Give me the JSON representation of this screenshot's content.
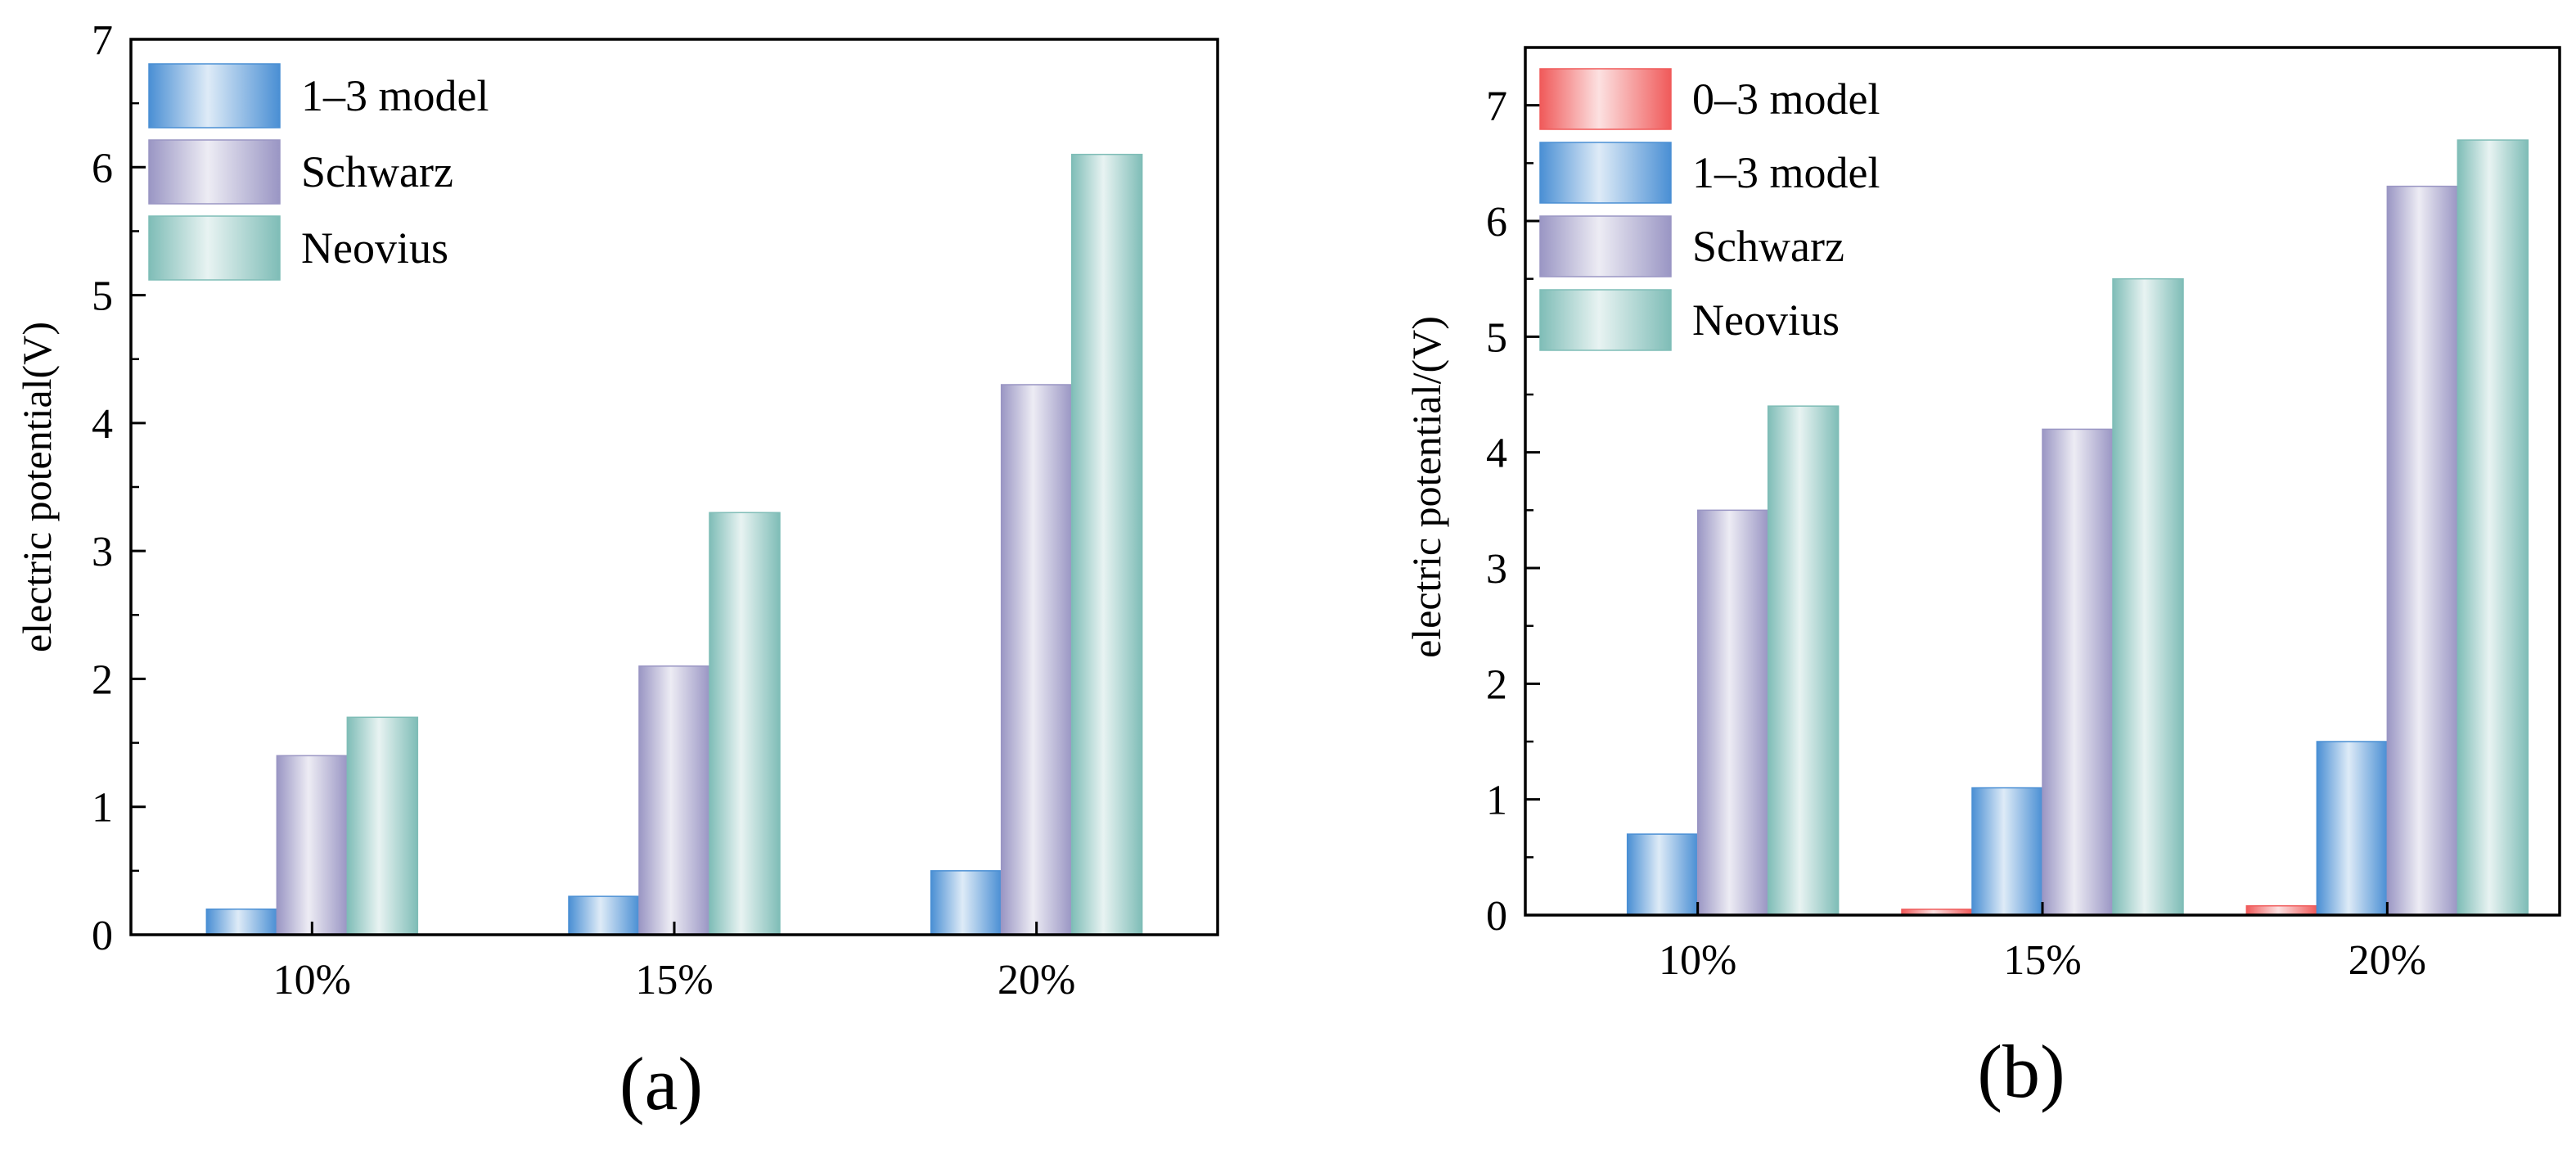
{
  "chart_data": [
    {
      "type": "bar",
      "panel_label": "(a)",
      "categories": [
        "10%",
        "15%",
        "20%"
      ],
      "ylabel": "electric potential(V)",
      "xlabel": "",
      "ylim": [
        0,
        7
      ],
      "yticks": [
        0,
        1,
        2,
        3,
        4,
        5,
        6,
        7
      ],
      "grid": false,
      "legend": "top-left",
      "series": [
        {
          "name": "1–3 model",
          "values": [
            0.2,
            0.3,
            0.5
          ],
          "color": "#4a8fd4"
        },
        {
          "name": "Schwarz",
          "values": [
            1.4,
            2.1,
            4.3
          ],
          "color": "#9a96c4"
        },
        {
          "name": "Neovius",
          "values": [
            1.7,
            3.3,
            6.1
          ],
          "color": "#7fbdb7"
        }
      ]
    },
    {
      "type": "bar",
      "panel_label": "(b)",
      "categories": [
        "10%",
        "15%",
        "20%"
      ],
      "ylabel": "electric potential/(V)",
      "xlabel": "",
      "ylim": [
        0,
        7.5
      ],
      "yticks": [
        0,
        1,
        2,
        3,
        4,
        5,
        6,
        7
      ],
      "grid": false,
      "legend": "top-left",
      "series": [
        {
          "name": "0–3 model",
          "values": [
            0.0,
            0.05,
            0.08
          ],
          "color": "#f05a5a"
        },
        {
          "name": "1–3 model",
          "values": [
            0.7,
            1.1,
            1.5
          ],
          "color": "#4a8fd4"
        },
        {
          "name": "Schwarz",
          "values": [
            3.5,
            4.2,
            6.3
          ],
          "color": "#9a96c4"
        },
        {
          "name": "Neovius",
          "values": [
            4.4,
            5.5,
            6.7
          ],
          "color": "#7fbdb7"
        }
      ]
    }
  ]
}
